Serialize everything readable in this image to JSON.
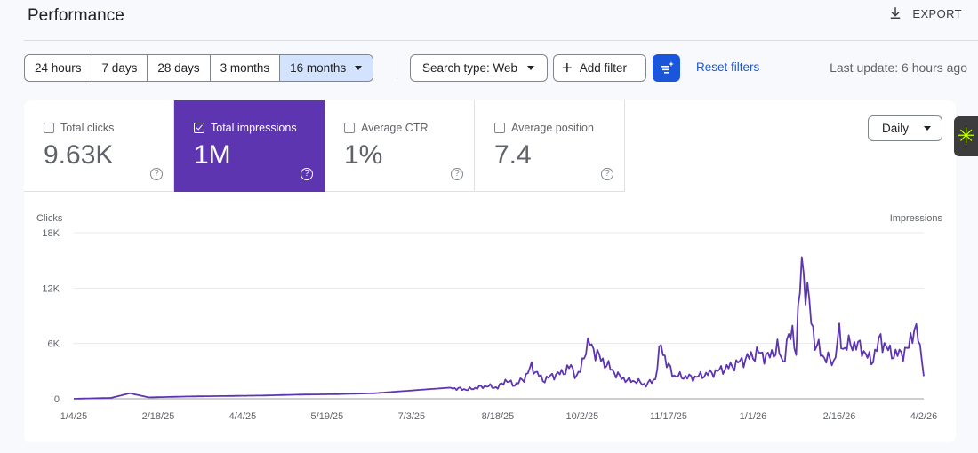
{
  "header": {
    "title": "Performance",
    "export_label": "EXPORT"
  },
  "date_range": [
    {
      "label": "24 hours",
      "active": false
    },
    {
      "label": "7 days",
      "active": false
    },
    {
      "label": "28 days",
      "active": false
    },
    {
      "label": "3 months",
      "active": false
    },
    {
      "label": "16 months",
      "active": true
    }
  ],
  "filters": {
    "search_type": "Search type: Web",
    "add_filter": "Add filter",
    "reset": "Reset filters",
    "last_update": "Last update: 6 hours ago"
  },
  "metrics": [
    {
      "label": "Total clicks",
      "value": "9.63K",
      "selected": false
    },
    {
      "label": "Total impressions",
      "value": "1M",
      "selected": true
    },
    {
      "label": "Average CTR",
      "value": "1%",
      "selected": false
    },
    {
      "label": "Average position",
      "value": "7.4",
      "selected": false
    }
  ],
  "granularity": "Daily",
  "colors": {
    "accent": "#1a56db",
    "impressions": "#5e35b1",
    "grid": "#e8eaed"
  },
  "icons": {
    "export": "download-icon",
    "filter": "filter-sparkle-icon",
    "help": "help-circle-icon",
    "side": "asterisk-icon"
  },
  "chart_data": {
    "type": "line",
    "left_axis_label": "Clicks",
    "right_axis_label": "Impressions",
    "y_ticks": [
      "0",
      "6K",
      "12K",
      "18K"
    ],
    "y_tick_values": [
      0,
      6000,
      12000,
      18000
    ],
    "ylim": [
      0,
      18000
    ],
    "x_tick_labels": [
      "1/4/25",
      "2/18/25",
      "4/4/25",
      "5/19/25",
      "7/3/25",
      "8/18/25",
      "10/2/25",
      "11/17/25",
      "1/1/26",
      "2/16/26",
      "4/2/26"
    ],
    "x_tick_positions": [
      0,
      45,
      90,
      135,
      180,
      226,
      271,
      317,
      362,
      408,
      453
    ],
    "grid": true,
    "series": [
      {
        "name": "Total impressions",
        "color": "#5e35b1",
        "x": [
          0,
          20,
          30,
          40,
          50,
          60,
          80,
          100,
          120,
          140,
          160,
          180,
          200,
          210,
          220,
          226,
          230,
          235,
          240,
          244,
          250,
          255,
          260,
          265,
          268,
          270,
          272,
          275,
          280,
          285,
          290,
          295,
          300,
          305,
          310,
          313,
          316,
          320,
          330,
          340,
          350,
          360,
          365,
          370,
          375,
          378,
          380,
          383,
          385,
          388,
          390,
          393,
          395,
          400,
          405,
          408,
          410,
          415,
          420,
          425,
          430,
          435,
          440,
          445,
          448,
          450,
          453
        ],
        "y": [
          0,
          100,
          600,
          150,
          200,
          250,
          300,
          350,
          450,
          500,
          600,
          900,
          1200,
          1000,
          1400,
          1200,
          2000,
          1500,
          2200,
          3500,
          2000,
          2500,
          2800,
          3500,
          2400,
          3000,
          5000,
          6000,
          4500,
          3500,
          2500,
          2000,
          1900,
          1500,
          2200,
          6000,
          3800,
          2500,
          2300,
          2800,
          3500,
          4500,
          5000,
          4500,
          5500,
          4000,
          5800,
          7500,
          5000,
          15500,
          12000,
          9000,
          6000,
          4500,
          4000,
          7000,
          5500,
          6000,
          5500,
          4000,
          6500,
          5000,
          4800,
          5500,
          8000,
          6500,
          3000
        ]
      }
    ]
  }
}
